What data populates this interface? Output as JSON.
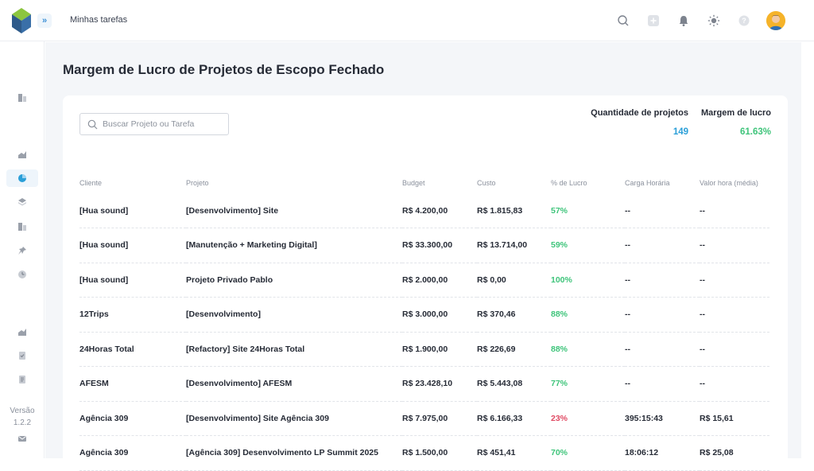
{
  "header": {
    "page_crumb": "Minhas tarefas",
    "expand_glyph": "»",
    "icons": [
      "search-icon",
      "plus-icon",
      "bell-icon",
      "sun-icon",
      "help-icon",
      "avatar"
    ]
  },
  "sidebar": {
    "version_label": "Versão",
    "version_number": "1.2.2"
  },
  "page": {
    "title": "Margem de Lucro de Projetos de Escopo Fechado"
  },
  "search": {
    "placeholder": "Buscar Projeto ou Tarefa",
    "value": ""
  },
  "stats": {
    "projects_label": "Quantidade de projetos",
    "projects_value": "149",
    "margin_label": "Margem de lucro",
    "margin_value": "61.63%"
  },
  "colors": {
    "accent_blue": "#2a9fd8",
    "positive_green": "#3ec47a",
    "negative_red": "#e04a63"
  },
  "table": {
    "headers": [
      "Cliente",
      "Projeto",
      "Budget",
      "Custo",
      "% de Lucro",
      "Carga Horária",
      "Valor hora (média)"
    ],
    "rows": [
      {
        "cliente": "[Hua sound]",
        "projeto": "[Desenvolvimento] Site",
        "budget": "R$ 4.200,00",
        "custo": "R$ 1.815,83",
        "lucro": "57%",
        "lucro_status": "good",
        "carga": "--",
        "valor_hora": "--"
      },
      {
        "cliente": "[Hua sound]",
        "projeto": "[Manutenção + Marketing Digital]",
        "budget": "R$ 33.300,00",
        "custo": "R$ 13.714,00",
        "lucro": "59%",
        "lucro_status": "good",
        "carga": "--",
        "valor_hora": "--"
      },
      {
        "cliente": "[Hua sound]",
        "projeto": "Projeto Privado Pablo",
        "budget": "R$ 2.000,00",
        "custo": "R$ 0,00",
        "lucro": "100%",
        "lucro_status": "good",
        "carga": "--",
        "valor_hora": "--"
      },
      {
        "cliente": "12Trips",
        "projeto": "[Desenvolvimento]",
        "budget": "R$ 3.000,00",
        "custo": "R$ 370,46",
        "lucro": "88%",
        "lucro_status": "good",
        "carga": "--",
        "valor_hora": "--"
      },
      {
        "cliente": "24Horas Total",
        "projeto": "[Refactory] Site 24Horas Total",
        "budget": "R$ 1.900,00",
        "custo": "R$ 226,69",
        "lucro": "88%",
        "lucro_status": "good",
        "carga": "--",
        "valor_hora": "--"
      },
      {
        "cliente": "AFESM",
        "projeto": "[Desenvolvimento] AFESM",
        "budget": "R$ 23.428,10",
        "custo": "R$ 5.443,08",
        "lucro": "77%",
        "lucro_status": "good",
        "carga": "--",
        "valor_hora": "--"
      },
      {
        "cliente": "Agência 309",
        "projeto": "[Desenvolvimento] Site Agência 309",
        "budget": "R$ 7.975,00",
        "custo": "R$ 6.166,33",
        "lucro": "23%",
        "lucro_status": "bad",
        "carga": "395:15:43",
        "valor_hora": "R$ 15,61"
      },
      {
        "cliente": "Agência 309",
        "projeto": "[Agência 309] Desenvolvimento LP Summit 2025",
        "budget": "R$ 1.500,00",
        "custo": "R$ 451,41",
        "lucro": "70%",
        "lucro_status": "good",
        "carga": "18:06:12",
        "valor_hora": "R$ 25,08"
      }
    ]
  }
}
